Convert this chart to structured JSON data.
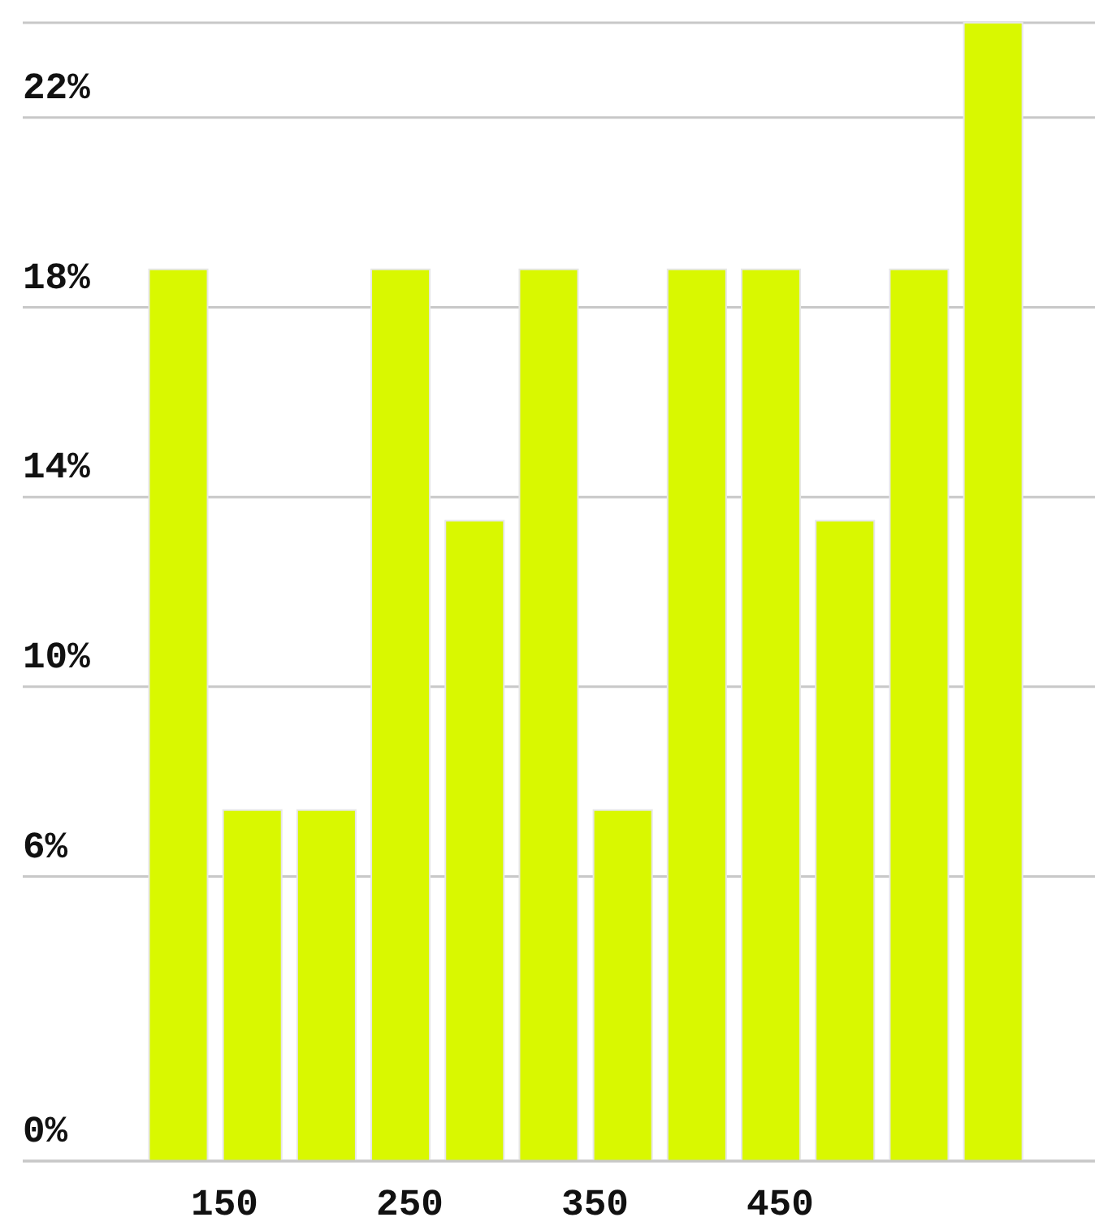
{
  "chart_data": {
    "type": "bar",
    "x": [
      125,
      165,
      205,
      245,
      285,
      325,
      365,
      405,
      445,
      485,
      525,
      565
    ],
    "values": [
      18.8,
      7.4,
      7.4,
      18.8,
      13.5,
      18.8,
      7.4,
      18.8,
      18.8,
      13.5,
      18.8,
      24
    ],
    "color": "#d9f800",
    "xlim": [
      41,
      620
    ],
    "xticks": [
      150,
      250,
      350,
      450
    ],
    "ylim": [
      0,
      24
    ],
    "yticks": [
      {
        "value": 0,
        "label": "0%"
      },
      {
        "value": 6,
        "label": "6%"
      },
      {
        "value": 10,
        "label": "10%"
      },
      {
        "value": 14,
        "label": "14%"
      },
      {
        "value": 18,
        "label": "18%"
      },
      {
        "value": 22,
        "label": "22%"
      }
    ],
    "grid": "y"
  }
}
